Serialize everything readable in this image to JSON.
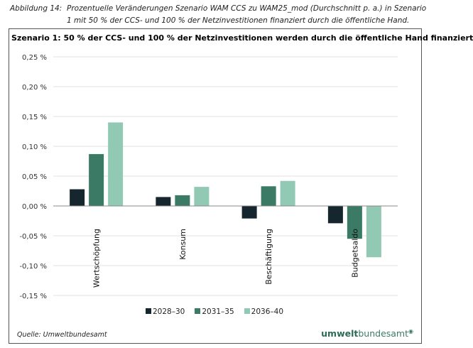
{
  "caption": {
    "label": "Abbildung 14:",
    "text": "Prozentuelle Veränderungen Szenario WAM CCS zu WAM25_mod (Durchschnitt p. a.) in Szenario 1 mit 50 % der CCS- und 100 % der Netzinvestitionen finanziert durch die öffentliche Hand."
  },
  "chart_data": {
    "type": "bar",
    "title": "Szenario 1: 50 % der CCS- und 100 % der Netzinvestitionen werden durch die öffentliche Hand finanziert",
    "categories": [
      "Wertschöpfung",
      "Konsum",
      "Beschäftigung",
      "Budgetsaldo"
    ],
    "series": [
      {
        "name": "2028–30",
        "color": "#15262f",
        "values": [
          0.028,
          0.015,
          -0.021,
          -0.029
        ]
      },
      {
        "name": "2031–35",
        "color": "#3b7a64",
        "values": [
          0.087,
          0.018,
          0.033,
          -0.055
        ]
      },
      {
        "name": "2036–40",
        "color": "#91c9b5",
        "values": [
          0.14,
          0.032,
          0.042,
          -0.086
        ]
      }
    ],
    "ylim": [
      -0.15,
      0.25
    ],
    "yticks": [
      0.25,
      0.2,
      0.15,
      0.1,
      0.05,
      0.0,
      -0.05,
      -0.1,
      -0.15
    ],
    "ytick_labels": [
      "0,25 %",
      "0,20 %",
      "0,15 %",
      "0,10 %",
      "0,05 %",
      "0,00 %",
      "-0,05 %",
      "-0,10 %",
      "-0,15 %"
    ],
    "grid": true,
    "legend": "bottom"
  },
  "footer": {
    "source": "Quelle: Umweltbundesamt",
    "logo_bold": "umwelt",
    "logo_rest": "bundesamt"
  }
}
